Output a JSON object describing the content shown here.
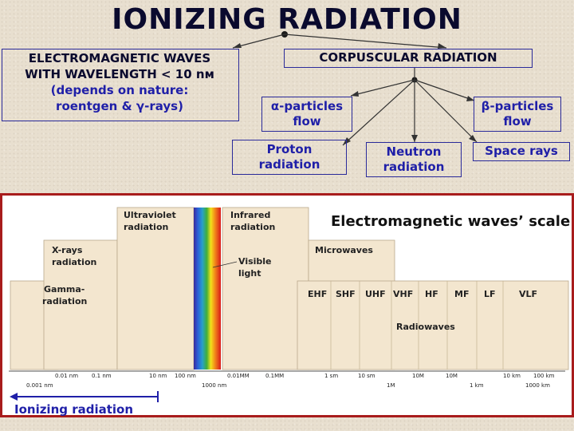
{
  "title": "IONIZING RADIATION",
  "em": {
    "line1": "ELECTROMAGNETIC WAVES",
    "line2": "WITH WAVELENGTH < 10 nм",
    "line3": "(depends on nature:",
    "line4": "roentgen & γ-rays)"
  },
  "corpuscular": {
    "title": "CORPUSCULAR RADIATION",
    "alpha_l1": "α-particles",
    "alpha_l2": "flow",
    "beta_l1": "β-particles",
    "beta_l2": "flow",
    "proton_l1": "Proton",
    "proton_l2": "radiation",
    "neutron_l1": "Neutron",
    "neutron_l2": "radiation",
    "space": "Space rays"
  },
  "scale": {
    "title": "Electromagnetic waves’ scale",
    "uv_l1": "Ultraviolet",
    "uv_l2": "radiation",
    "ir_l1": "Infrared",
    "ir_l2": "radiation",
    "xray_l1": "X-rays",
    "xray_l2": "radiation",
    "gamma_l1": "Gamma-",
    "gamma_l2": "radiation",
    "visible_l1": "Visible",
    "visible_l2": "light",
    "microwaves": "Microwaves",
    "radiowaves": "Radiowaves",
    "bands": [
      "EHF",
      "SHF",
      "UHF",
      "VHF",
      "HF",
      "MF",
      "LF",
      "VLF"
    ],
    "ticks_top": [
      "0.01 nm",
      "0.1 nm",
      "10 nm",
      "100 nm",
      "0.01MM",
      "0.1MM",
      "1 sm",
      "10 sm",
      "10M",
      "10M",
      "10 km",
      "100 km"
    ],
    "ticks_bottom": [
      "0.001 nm",
      "1000 nm",
      "1M",
      "1 km",
      "1000 km"
    ]
  },
  "ionizing_label": "Ionizing radiation",
  "colors": {
    "border": "#a81c1c",
    "blue": "#1f1fa8",
    "dark": "#0a0a2e"
  }
}
